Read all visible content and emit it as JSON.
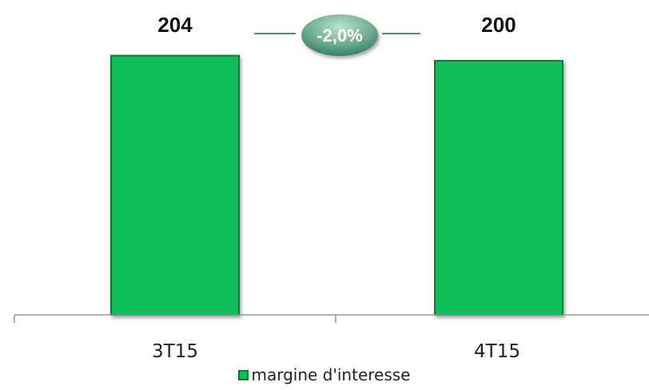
{
  "chart_data": {
    "type": "bar",
    "categories": [
      "3T15",
      "4T15"
    ],
    "series": [
      {
        "name": "margine d'interesse",
        "values": [
          204,
          200
        ]
      }
    ],
    "data_labels": [
      "204",
      "200"
    ],
    "annotation": {
      "text": "-2,0%"
    },
    "legend": {
      "label": "margine d'interesse",
      "position": "bottom"
    },
    "grid": false,
    "ylim": [
      0,
      210
    ],
    "colors": {
      "bar_fill": "#0dbf57",
      "bar_edge": "#0e7a36",
      "axis": "#999999",
      "badge_light": "#86c9a7",
      "badge_dark": "#2f7a5c",
      "connector": "#4f8f78"
    }
  }
}
